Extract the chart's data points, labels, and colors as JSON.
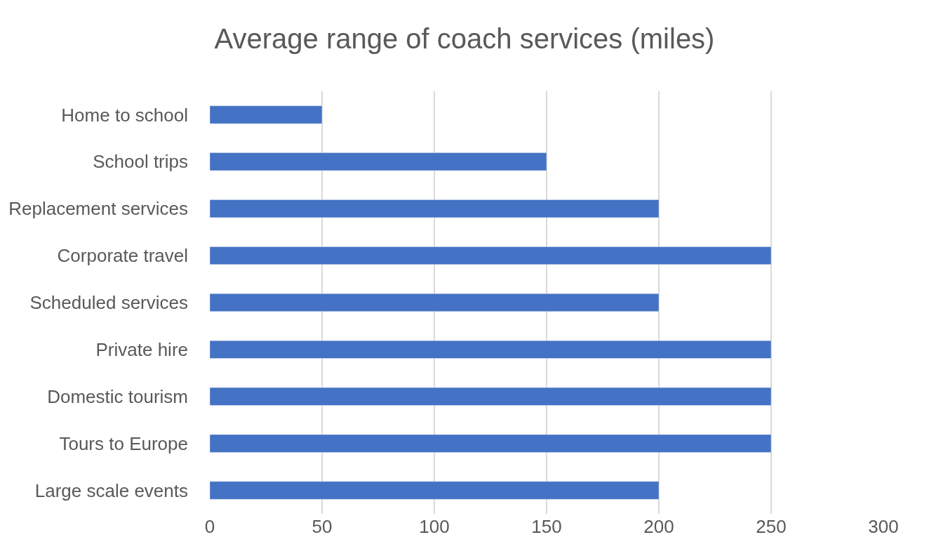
{
  "chart_data": {
    "type": "bar",
    "orientation": "horizontal",
    "title": "Average range of coach services (miles)",
    "categories": [
      "Home to school",
      "School trips",
      "Replacement services",
      "Corporate travel",
      "Scheduled services",
      "Private hire",
      "Domestic tourism",
      "Tours to Europe",
      "Large scale events"
    ],
    "values": [
      50,
      150,
      200,
      250,
      200,
      250,
      250,
      250,
      200
    ],
    "color": "#4472c4",
    "xlim": [
      0,
      300
    ],
    "xticks": [
      0,
      50,
      100,
      150,
      200,
      250,
      300
    ],
    "grid": "x"
  }
}
